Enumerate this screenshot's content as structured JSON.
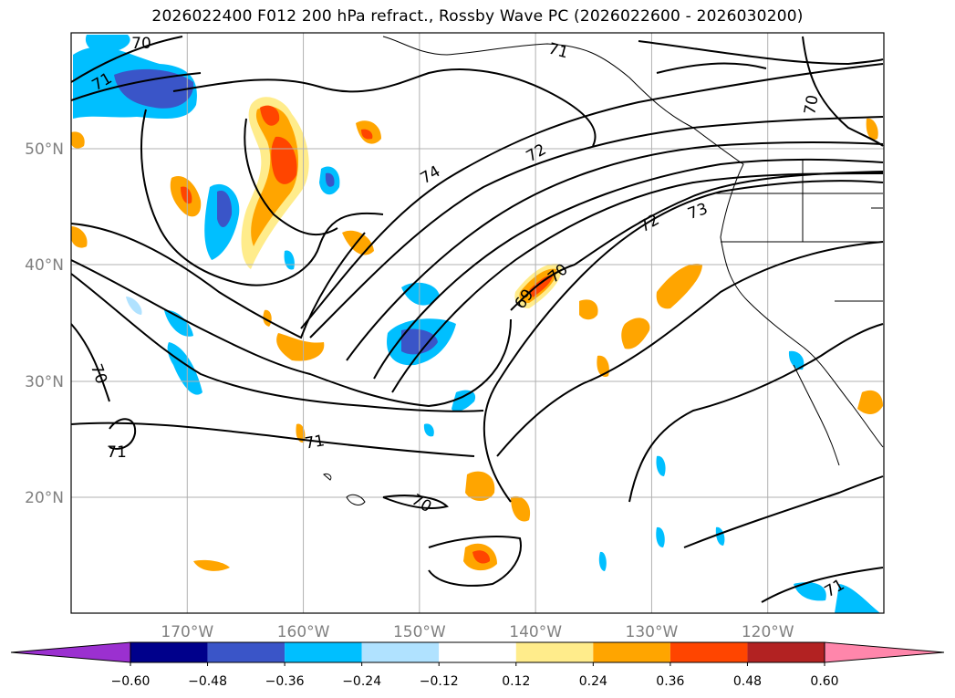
{
  "title": "2026022400 F012 200 hPa refract., Rossby Wave PC (2026022600 - 2026030200)",
  "map": {
    "type": "contour-map",
    "lat_labels": [
      "50°N",
      "40°N",
      "30°N",
      "20°N"
    ],
    "lat_values": [
      50,
      40,
      30,
      20
    ],
    "lon_labels": [
      "170°W",
      "160°W",
      "150°W",
      "140°W",
      "130°W",
      "120°W"
    ],
    "lon_values": [
      -170,
      -160,
      -150,
      -140,
      -130,
      -120
    ],
    "lat_range": [
      10,
      60
    ],
    "lon_range": [
      -180,
      -110
    ],
    "grid": true,
    "contour_labels": [
      "69",
      "70",
      "70",
      "70",
      "70",
      "70",
      "71",
      "71",
      "71",
      "71",
      "71",
      "72",
      "72",
      "73",
      "74"
    ]
  },
  "colorbar": {
    "tick_labels": [
      "−0.60",
      "−0.48",
      "−0.36",
      "−0.24",
      "−0.12",
      "0.12",
      "0.24",
      "0.36",
      "0.48",
      "0.60"
    ],
    "colors": [
      "#9b30d0",
      "#00008b",
      "#3a55c8",
      "#00bfff",
      "#b0e2ff",
      "#ffffff",
      "#ffec8b",
      "#ffa500",
      "#ff4500",
      "#b22222",
      "#ff86ab"
    ],
    "extend": "both"
  }
}
